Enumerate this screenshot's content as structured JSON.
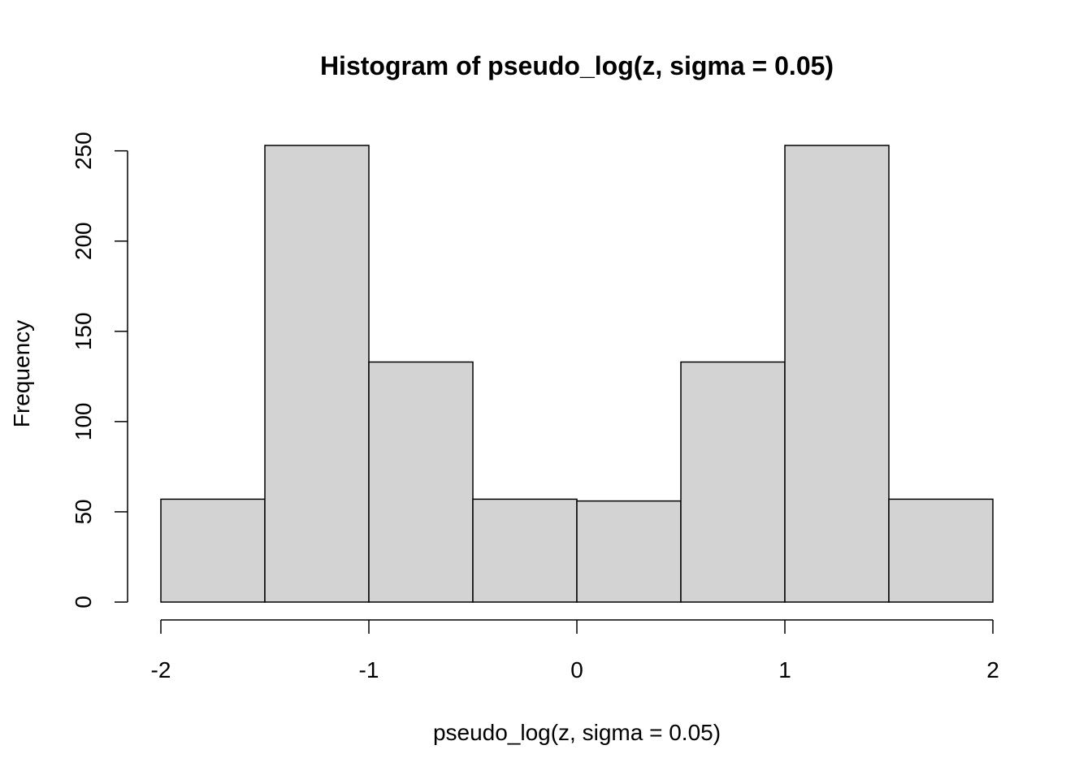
{
  "chart_data": {
    "type": "histogram",
    "title": "Histogram of pseudo_log(z, sigma = 0.05)",
    "x_label": "pseudo_log(z, sigma = 0.05)",
    "y_label": "Frequency",
    "bins": [
      -2,
      -1.5,
      -1,
      -0.5,
      0,
      0.5,
      1,
      1.5,
      2
    ],
    "values": [
      57,
      253,
      133,
      57,
      56,
      133,
      253,
      57
    ],
    "color": "#d3d3d3",
    "xlim": [
      -2,
      2
    ],
    "xticks": [
      -2,
      -1,
      0,
      1,
      2
    ],
    "ylim": [
      0,
      253
    ],
    "yticks": [
      0,
      50,
      100,
      150,
      200,
      250
    ],
    "grid": false
  }
}
